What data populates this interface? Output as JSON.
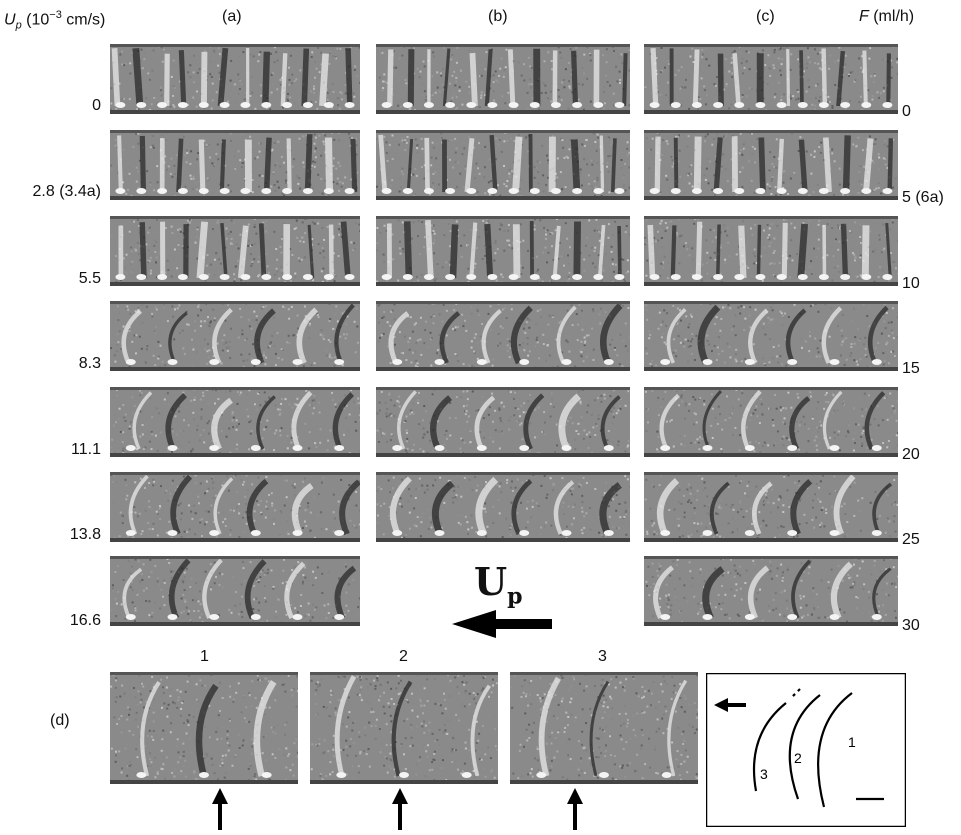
{
  "header": {
    "up_symbol": "U",
    "up_sub": "p",
    "up_unit": "(10",
    "up_exp": "−3",
    "up_unit_tail": " cm/s)",
    "col_a": "(a)",
    "col_b": "(b)",
    "col_c": "(c)",
    "f_symbol": "F",
    "f_unit": " (ml/h)"
  },
  "left_labels": [
    "0",
    "2.8 (3.4a)",
    "5.5",
    "8.3",
    "11.1",
    "13.8",
    "16.6"
  ],
  "right_labels": [
    "0",
    "5 (6a)",
    "10",
    "15",
    "20",
    "25",
    "30"
  ],
  "arrow_label": {
    "main": "U",
    "sub": "p"
  },
  "row_d": {
    "label": "(d)",
    "frames": [
      "1",
      "2",
      "3"
    ],
    "sketch_labels": [
      "1",
      "2",
      "3"
    ]
  },
  "colors": {
    "panel_bg": "#8a8a8a",
    "stripe_dark": "#2a2a2a",
    "stripe_light": "#e8e8e8"
  }
}
